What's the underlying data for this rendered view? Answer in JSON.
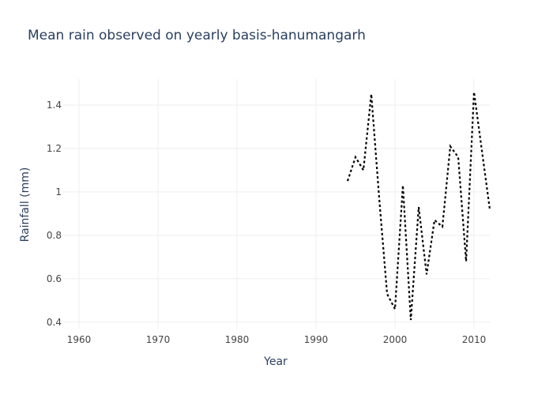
{
  "chart_data": {
    "type": "line",
    "title": "Mean rain observed on yearly basis-hanumangarh",
    "xlabel": "Year",
    "ylabel": "Rainfall (mm)",
    "xlim": [
      1958,
      2012
    ],
    "ylim": [
      0.37,
      1.52
    ],
    "x_ticks": [
      1960,
      1970,
      1980,
      1990,
      2000,
      2010
    ],
    "y_ticks": [
      0.4,
      0.6,
      0.8,
      1,
      1.2,
      1.4
    ],
    "y_tick_labels": [
      "0.4",
      "0.6",
      "0.8",
      "1",
      "1.2",
      "1.4"
    ],
    "grid": true,
    "line_color": "#000000",
    "line_style": "dotted",
    "series": [
      {
        "x": [
          1994,
          1995,
          1996,
          1997,
          1998,
          1999,
          2000,
          2001,
          2002,
          2003,
          2004,
          2005,
          2006,
          2007,
          2008,
          2009,
          2010,
          2011,
          2012
        ],
        "y": [
          1.05,
          1.16,
          1.1,
          1.45,
          0.97,
          0.53,
          0.46,
          1.03,
          0.41,
          0.93,
          0.62,
          0.87,
          0.84,
          1.21,
          1.16,
          0.68,
          1.46,
          1.19,
          0.92
        ]
      }
    ]
  }
}
